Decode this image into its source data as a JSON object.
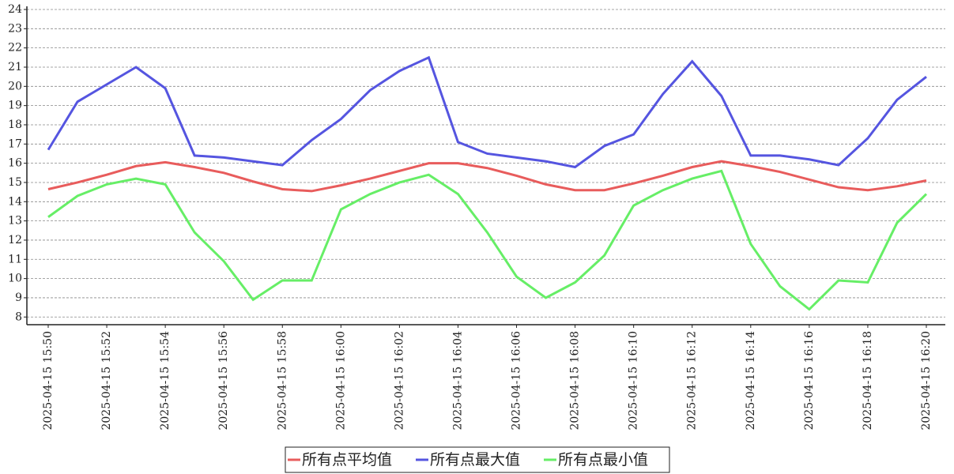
{
  "chart_data": {
    "type": "line",
    "categories": [
      "2025-04-15 15:50",
      null,
      "2025-04-15 15:52",
      null,
      "2025-04-15 15:54",
      null,
      "2025-04-15 15:56",
      null,
      "2025-04-15 15:58",
      null,
      "2025-04-15 16:00",
      null,
      "2025-04-15 16:02",
      null,
      "2025-04-15 16:04",
      null,
      "2025-04-15 16:06",
      null,
      "2025-04-15 16:08",
      null,
      "2025-04-15 16:10",
      null,
      "2025-04-15 16:12",
      null,
      "2025-04-15 16:14",
      null,
      "2025-04-15 16:16",
      null,
      "2025-04-15 16:18",
      null,
      "2025-04-15 16:20"
    ],
    "series": [
      {
        "name": "所有点平均值",
        "color": "#e85c5c",
        "values": [
          14.65,
          15.0,
          15.4,
          15.85,
          16.05,
          15.8,
          15.5,
          15.05,
          14.65,
          14.55,
          14.85,
          15.2,
          15.6,
          16.0,
          16.0,
          15.75,
          15.35,
          14.9,
          14.6,
          14.6,
          14.95,
          15.35,
          15.8,
          16.1,
          15.85,
          15.55,
          15.15,
          14.75,
          14.6,
          14.8,
          15.1
        ]
      },
      {
        "name": "所有点最大值",
        "color": "#5555e0",
        "values": [
          16.7,
          19.2,
          20.1,
          21.0,
          19.9,
          16.4,
          16.3,
          16.1,
          15.9,
          17.2,
          18.3,
          19.8,
          20.8,
          21.5,
          17.1,
          16.5,
          16.3,
          16.1,
          15.8,
          16.9,
          17.5,
          19.6,
          21.3,
          19.5,
          16.4,
          16.4,
          16.2,
          15.9,
          17.3,
          19.3,
          20.5
        ]
      },
      {
        "name": "所有点最小值",
        "color": "#66ee66",
        "values": [
          13.2,
          14.3,
          14.9,
          15.2,
          14.9,
          12.4,
          10.9,
          8.9,
          9.9,
          9.9,
          13.6,
          14.4,
          15.0,
          15.4,
          14.4,
          12.4,
          10.1,
          9.0,
          9.8,
          11.2,
          13.8,
          14.6,
          15.2,
          15.6,
          11.8,
          9.6,
          8.4,
          9.9,
          9.8,
          12.9,
          14.4
        ]
      }
    ],
    "ylim": [
      7.6,
      24
    ],
    "yticks": [
      8,
      9,
      10,
      11,
      12,
      13,
      14,
      15,
      16,
      17,
      18,
      19,
      20,
      21,
      22,
      23,
      24
    ],
    "grid": true,
    "legend": "bottom"
  }
}
